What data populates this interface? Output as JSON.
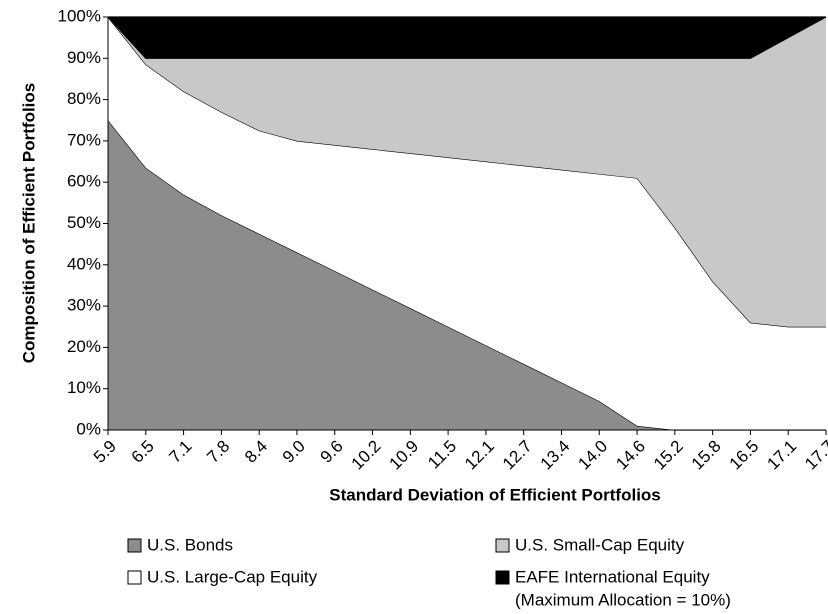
{
  "chart_data": {
    "type": "area",
    "stacked": true,
    "xlabel": "Standard Deviation of Efficient Portfolios",
    "ylabel": "Composition of Efficient Portfolios",
    "categories": [
      "5.9",
      "6.5",
      "7.1",
      "7.8",
      "8.4",
      "9.0",
      "9.6",
      "10.2",
      "10.9",
      "11.5",
      "12.1",
      "12.7",
      "13.4",
      "14.0",
      "14.6",
      "15.2",
      "15.8",
      "16.5",
      "17.1",
      "17.7"
    ],
    "series": [
      {
        "name": "U.S. Bonds",
        "color": "#8c8c8c",
        "values": [
          75,
          63.5,
          57,
          52,
          47.5,
          43,
          38.5,
          34,
          29.5,
          25,
          20.5,
          16,
          11.5,
          7,
          1,
          0,
          0,
          0,
          0,
          0
        ]
      },
      {
        "name": "U.S. Large-Cap Equity",
        "color": "#ffffff",
        "values": [
          25,
          25,
          25,
          25,
          25,
          27,
          30.5,
          34,
          37.5,
          41,
          44.5,
          48,
          51.5,
          55,
          60,
          49,
          36,
          26,
          25,
          25
        ]
      },
      {
        "name": "U.S. Small-Cap Equity",
        "color": "#c8c8c8",
        "values": [
          0,
          1.5,
          8,
          13,
          17.5,
          20,
          21,
          22,
          23,
          24,
          25,
          26,
          27,
          28,
          29,
          41,
          54,
          64,
          70,
          75
        ]
      },
      {
        "name": "EAFE International Equity",
        "color": "#000000",
        "values": [
          0,
          10,
          10,
          10,
          10,
          10,
          10,
          10,
          10,
          10,
          10,
          10,
          10,
          10,
          10,
          10,
          10,
          10,
          5,
          0
        ]
      }
    ],
    "legend_note": "(Maximum Allocation = 10%)",
    "ylim": [
      0,
      100
    ],
    "yticks": [
      {
        "value": 0,
        "label": "0%"
      },
      {
        "value": 10,
        "label": "10%"
      },
      {
        "value": 20,
        "label": "20%"
      },
      {
        "value": 30,
        "label": "30%"
      },
      {
        "value": 40,
        "label": "40%"
      },
      {
        "value": 50,
        "label": "50%"
      },
      {
        "value": 60,
        "label": "60%"
      },
      {
        "value": 70,
        "label": "70%"
      },
      {
        "value": 80,
        "label": "80%"
      },
      {
        "value": 90,
        "label": "90%"
      },
      {
        "value": 100,
        "label": "100%"
      }
    ]
  }
}
